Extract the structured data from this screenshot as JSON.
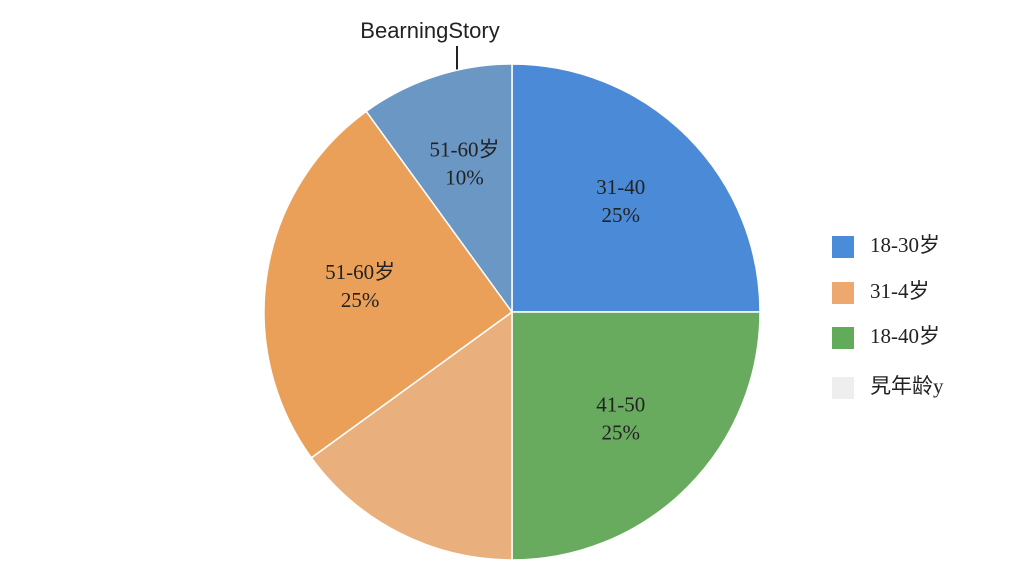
{
  "chart_data": {
    "type": "pie",
    "title": "BearningStory",
    "categories": [
      "31-40",
      "41-50",
      null,
      "51-60岁",
      "51-60岁"
    ],
    "values": [
      25,
      25,
      15,
      25,
      10
    ],
    "value_labels": [
      "25%",
      "25%",
      null,
      "25%",
      "10%"
    ],
    "colors": [
      "#4a8ad6",
      "#68ab5e",
      "#e9b07e",
      "#eba05a",
      "#6b97c4"
    ],
    "legend": [
      {
        "label": "18-30岁",
        "color": "#4a8cd8"
      },
      {
        "label": "31-4岁",
        "color": "#eda870"
      },
      {
        "label": "18-40岁",
        "color": "#62ab5a"
      },
      {
        "label": "旯年龄y",
        "color": "#eeeeee"
      }
    ]
  }
}
